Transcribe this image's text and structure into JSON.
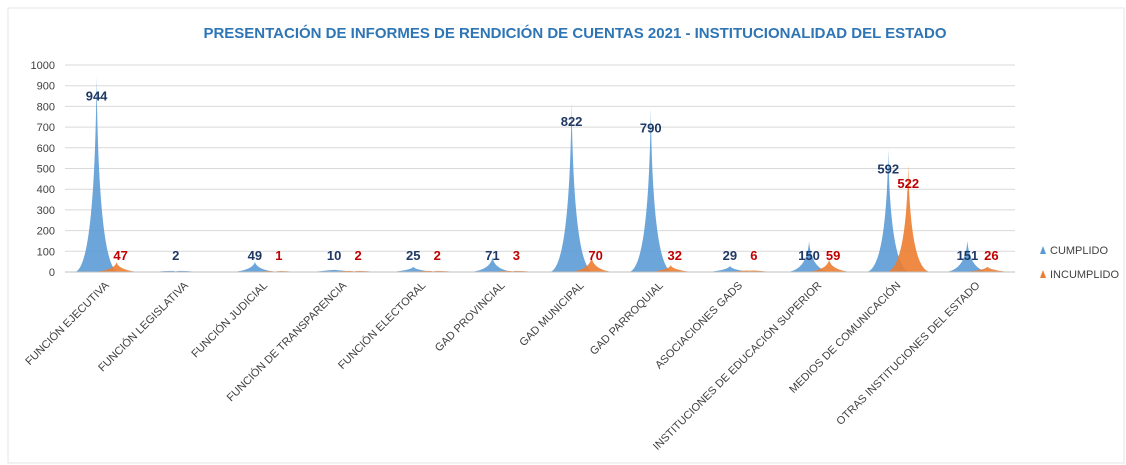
{
  "chart_data": {
    "type": "spike",
    "title": "PRESENTACIÓN DE INFORMES DE RENDICIÓN DE CUENTAS 2021 - INSTITUCIONALIDAD DEL ESTADO",
    "categories": [
      "FUNCIÓN EJECUTIVA",
      "FUNCIÓN LEGISLATIVA",
      "FUNCIÓN JUDICIAL",
      "FUNCIÓN DE TRANSPARENCIA",
      "FUNCIÓN ELECTORAL",
      "GAD PROVINCIAL",
      "GAD MUNICIPAL",
      "GAD PARROQUIAL",
      "ASOCIACIONES GADS",
      "INSTITUCIONES DE EDUCACIÓN SUPERIOR",
      "MEDIOS DE COMUNICACIÓN",
      "OTRAS INSTITUCIONES DEL ESTADO"
    ],
    "series": [
      {
        "name": "CUMPLIDO",
        "color": "#5b9bd5",
        "label_color": "#1f3864",
        "values": [
          944,
          2,
          49,
          10,
          25,
          71,
          822,
          790,
          29,
          150,
          592,
          151
        ]
      },
      {
        "name": "INCUMPLIDO",
        "color": "#ed7d31",
        "label_color": "#c00000",
        "values": [
          47,
          null,
          1,
          2,
          2,
          3,
          70,
          32,
          6,
          59,
          522,
          26
        ]
      }
    ],
    "ylim": [
      0,
      1000
    ],
    "yticks": [
      0,
      100,
      200,
      300,
      400,
      500,
      600,
      700,
      800,
      900,
      1000
    ],
    "grid": true,
    "legend": "right"
  }
}
